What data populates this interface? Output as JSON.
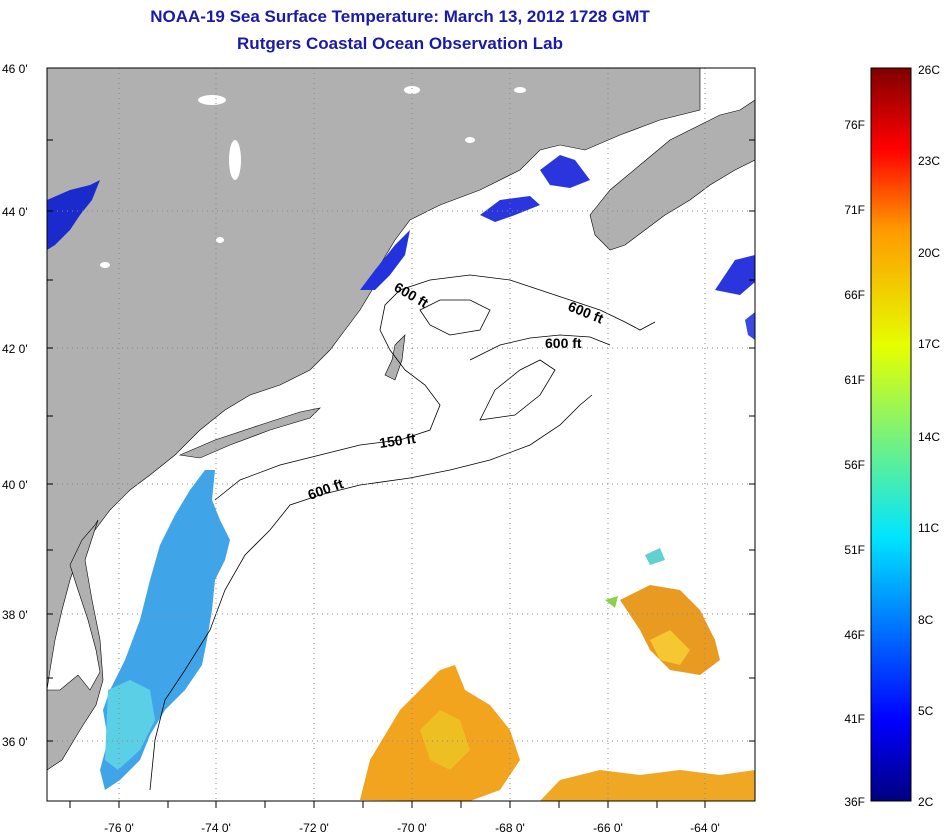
{
  "header": {
    "title": "NOAA-19 Sea Surface Temperature:  March 13, 2012 1728 GMT",
    "subtitle": "Rutgers Coastal Ocean Observation Lab"
  },
  "map": {
    "lat_labels": [
      "46 0'",
      "44 0'",
      "42 0'",
      "40 0'",
      "38 0'",
      "36 0'"
    ],
    "lon_labels": [
      "-76 0'",
      "-74 0'",
      "-72 0'",
      "-70 0'",
      "-68 0'",
      "-66 0'",
      "-64 0'"
    ],
    "land_color": "#b0b0b0",
    "isobath_labels": [
      "600 ft",
      "600 ft",
      "600 ft",
      "150 ft",
      "600 ft"
    ]
  },
  "colorbar": {
    "fahrenheit": [
      "76F",
      "71F",
      "66F",
      "61F",
      "56F",
      "51F",
      "46F",
      "41F",
      "36F"
    ],
    "celsius": [
      "26C",
      "23C",
      "20C",
      "17C",
      "14C",
      "11C",
      "8C",
      "5C",
      "2C"
    ]
  }
}
